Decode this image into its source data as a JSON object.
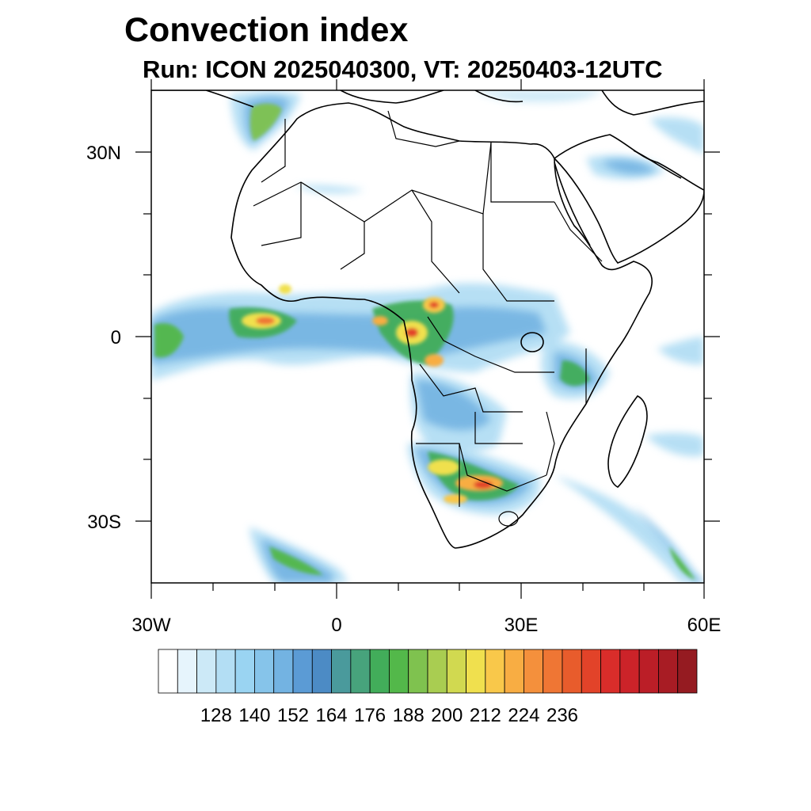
{
  "title": "Convection index",
  "subtitle": "Run: ICON 2025040300,  VT: 20250403-12UTC",
  "axes": {
    "lon_ticks": [
      "30W",
      "0",
      "30E",
      "60E"
    ],
    "lat_ticks": [
      "30N",
      "0",
      "30S"
    ]
  },
  "colorbar": {
    "labels": [
      "128",
      "140",
      "152",
      "164",
      "176",
      "188",
      "200",
      "212",
      "224",
      "236"
    ],
    "colors": [
      "#ffffff",
      "#e6f4fc",
      "#cce9f7",
      "#b3def4",
      "#9ad4f2",
      "#86c4ea",
      "#73b3e2",
      "#5b9bd5",
      "#4c8bc5",
      "#4a9a9c",
      "#47a37c",
      "#42ad5a",
      "#53b84a",
      "#7fc24f",
      "#a9cd51",
      "#d1d950",
      "#f0e04e",
      "#f9c84a",
      "#f8ad43",
      "#f4903c",
      "#ef7634",
      "#e85c2c",
      "#e24329",
      "#d92d2a",
      "#cc2329",
      "#bb1e27",
      "#a81c24",
      "#951b21"
    ]
  }
}
